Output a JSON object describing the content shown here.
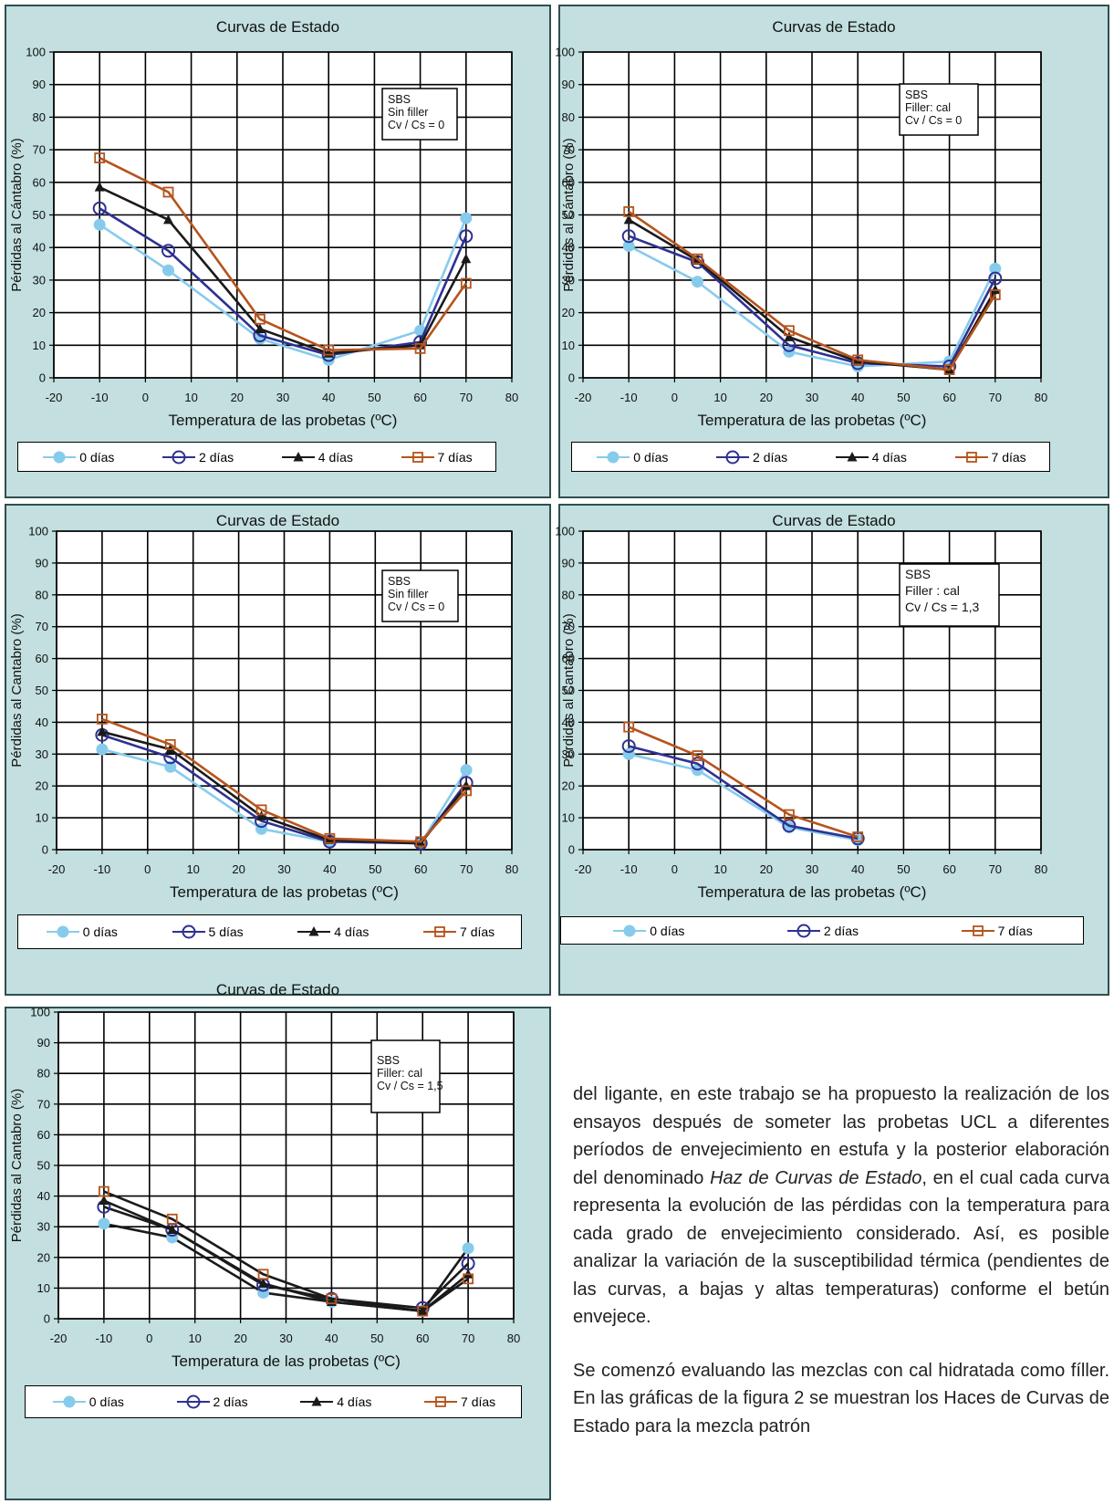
{
  "chart_data": [
    {
      "type": "line",
      "title": "Curvas de Estado",
      "xlabel": "Temperatura de las probetas (ºC)",
      "ylabel": "Pérdidas al Cántabro (%)",
      "xlim": [
        -20,
        80
      ],
      "ylim": [
        0,
        100
      ],
      "xticks": [
        "-20",
        "-10",
        "0",
        "10",
        "20",
        "30",
        "40",
        "50",
        "60",
        "70",
        "80"
      ],
      "yticks": [
        "0",
        "10",
        "20",
        "30",
        "40",
        "50",
        "60",
        "70",
        "80",
        "90",
        "100"
      ],
      "grid": true,
      "annotation": [
        "SBS",
        "Sin filler",
        "Cv / Cs = 0"
      ],
      "legend": "bottom",
      "series": [
        {
          "name": "0 días",
          "marker": "filled-circle",
          "color": "#87cbec",
          "x": [
            -10,
            5,
            25,
            40,
            60,
            70
          ],
          "y": [
            47,
            33,
            12,
            5.5,
            14.5,
            49
          ]
        },
        {
          "name": "2 días",
          "marker": "open-circle",
          "color": "#2e3192",
          "x": [
            -10,
            5,
            25,
            40,
            60,
            70
          ],
          "y": [
            52,
            39,
            13,
            7,
            11,
            43.5
          ]
        },
        {
          "name": "4 días",
          "marker": "filled-triangle",
          "color": "#1a1a1a",
          "x": [
            -10,
            5,
            25,
            40,
            60,
            70
          ],
          "y": [
            58.5,
            48.5,
            15,
            7.5,
            10,
            36.5
          ]
        },
        {
          "name": "7 días",
          "marker": "open-square",
          "color": "#b5541c",
          "x": [
            -10,
            5,
            25,
            40,
            60,
            70
          ],
          "y": [
            67.5,
            57,
            18,
            8.5,
            9,
            29
          ]
        }
      ]
    },
    {
      "type": "line",
      "title": "Curvas de Estado",
      "xlabel": "Temperatura de las probetas (ºC)",
      "ylabel": "Pérdidas al Cántabro (%)",
      "xlim": [
        -20,
        80
      ],
      "ylim": [
        0,
        100
      ],
      "xticks": [
        "-20",
        "-10",
        "0",
        "10",
        "20",
        "30",
        "40",
        "50",
        "60",
        "70",
        "80"
      ],
      "yticks": [
        "0",
        "10",
        "20",
        "30",
        "40",
        "50",
        "60",
        "70",
        "80",
        "90",
        "100"
      ],
      "grid": true,
      "annotation": [
        "SBS",
        "Filler: cal",
        "Cv / Cs = 0"
      ],
      "legend": "bottom",
      "series": [
        {
          "name": "0 días",
          "marker": "filled-circle",
          "color": "#87cbec",
          "x": [
            -10,
            5,
            25,
            40,
            60,
            70
          ],
          "y": [
            40.5,
            29.5,
            8,
            3.5,
            5,
            33.5
          ]
        },
        {
          "name": "2 días",
          "marker": "open-circle",
          "color": "#2e3192",
          "x": [
            -10,
            5,
            25,
            40,
            60,
            70
          ],
          "y": [
            43.5,
            35.5,
            10,
            4.5,
            3.5,
            30.5
          ]
        },
        {
          "name": "4 días",
          "marker": "filled-triangle",
          "color": "#1a1a1a",
          "x": [
            -10,
            5,
            25,
            40,
            60,
            70
          ],
          "y": [
            48.5,
            36,
            12.5,
            5,
            2.5,
            27
          ]
        },
        {
          "name": "7 días",
          "marker": "open-square",
          "color": "#b5541c",
          "x": [
            -10,
            5,
            25,
            40,
            60,
            70
          ],
          "y": [
            51,
            36.5,
            14.5,
            5.5,
            2.5,
            25.5
          ]
        }
      ]
    },
    {
      "type": "line",
      "title": "Curvas de Estado",
      "xlabel": "Temperatura de las probetas (ºC)",
      "ylabel": "Pérdidas al Cantabro (%)",
      "xlim": [
        -20,
        80
      ],
      "ylim": [
        0,
        100
      ],
      "xticks": [
        "-20",
        "-10",
        "0",
        "10",
        "20",
        "30",
        "40",
        "50",
        "60",
        "70",
        "80"
      ],
      "yticks": [
        "0",
        "10",
        "20",
        "30",
        "40",
        "50",
        "60",
        "70",
        "80",
        "90",
        "100"
      ],
      "grid": true,
      "annotation": [
        "SBS",
        "Sin filler",
        "Cv / Cs = 0"
      ],
      "legend": "bottom",
      "series": [
        {
          "name": "0 días",
          "marker": "filled-circle",
          "color": "#87cbec",
          "x": [
            -10,
            5,
            25,
            40,
            60,
            70
          ],
          "y": [
            31.5,
            26,
            6.5,
            2.5,
            2,
            25
          ]
        },
        {
          "name": "5 días",
          "marker": "open-circle",
          "color": "#2e3192",
          "x": [
            -10,
            5,
            25,
            40,
            60,
            70
          ],
          "y": [
            36,
            29,
            9,
            2.5,
            2,
            21
          ]
        },
        {
          "name": "4 días",
          "marker": "filled-triangle",
          "color": "#1a1a1a",
          "x": [
            -10,
            5,
            25,
            40,
            60,
            70
          ],
          "y": [
            37,
            31.5,
            10.5,
            3,
            2,
            20
          ]
        },
        {
          "name": "7 días",
          "marker": "open-square",
          "color": "#b5541c",
          "x": [
            -10,
            5,
            25,
            40,
            60,
            70
          ],
          "y": [
            41,
            33,
            12.5,
            3.5,
            2.5,
            18.5
          ]
        }
      ]
    },
    {
      "type": "line",
      "title": "Curvas de Estado",
      "xlabel": "Temperatura de las probetas (ºC)",
      "ylabel": "Pérdidas al Cantabro (%)",
      "xlim": [
        -20,
        80
      ],
      "ylim": [
        0,
        100
      ],
      "xticks": [
        "-20",
        "-10",
        "0",
        "10",
        "20",
        "30",
        "40",
        "50",
        "60",
        "70",
        "80"
      ],
      "yticks": [
        "0",
        "10",
        "20",
        "30",
        "40",
        "50",
        "60",
        "70",
        "80",
        "90",
        "100"
      ],
      "grid": true,
      "annotation": [
        "SBS",
        "Filler : cal",
        "Cv / Cs = 1,3"
      ],
      "legend": "bottom",
      "series": [
        {
          "name": "0 días",
          "marker": "filled-circle",
          "color": "#87cbec",
          "x": [
            -10,
            5,
            25,
            40
          ],
          "y": [
            30,
            25,
            7,
            3
          ]
        },
        {
          "name": "2 días",
          "marker": "open-circle",
          "color": "#2e3192",
          "x": [
            -10,
            5,
            25,
            40
          ],
          "y": [
            32.5,
            27,
            7.5,
            3.5
          ]
        },
        {
          "name": "7 días",
          "marker": "open-square",
          "color": "#b5541c",
          "x": [
            -10,
            5,
            25,
            40
          ],
          "y": [
            38.5,
            29.5,
            11,
            4
          ]
        }
      ]
    },
    {
      "type": "line",
      "title": "Curvas de Estado",
      "xlabel": "Temperatura de las probetas (ºC)",
      "ylabel": "Pérdidas al Cantabro (%)",
      "xlim": [
        -20,
        80
      ],
      "ylim": [
        0,
        100
      ],
      "xticks": [
        "-20",
        "-10",
        "0",
        "10",
        "20",
        "30",
        "40",
        "50",
        "60",
        "70",
        "80"
      ],
      "yticks": [
        "0",
        "10",
        "20",
        "30",
        "40",
        "50",
        "60",
        "70",
        "80",
        "90",
        "100"
      ],
      "grid": true,
      "annotation": [
        "SBS",
        "Filler: cal",
        "Cv / Cs = 1,5"
      ],
      "legend": "bottom",
      "series": [
        {
          "name": "0 días",
          "marker": "filled-circle",
          "color": "#87cbec",
          "line": "#1a1a1a",
          "x": [
            -10,
            5,
            25,
            40,
            60,
            70
          ],
          "y": [
            31,
            26.5,
            8.5,
            5.5,
            2.5,
            23
          ]
        },
        {
          "name": "2 días",
          "marker": "open-circle",
          "color": "#2e3192",
          "line": "#1a1a1a",
          "x": [
            -10,
            5,
            25,
            40,
            60,
            70
          ],
          "y": [
            36.5,
            29,
            11,
            6.5,
            3.5,
            18
          ]
        },
        {
          "name": "4 días",
          "marker": "filled-triangle",
          "color": "#1a1a1a",
          "line": "#1a1a1a",
          "x": [
            -10,
            5,
            25,
            40,
            60,
            70
          ],
          "y": [
            38.5,
            29,
            11.5,
            5.5,
            2.5,
            14.5
          ]
        },
        {
          "name": "7 días",
          "marker": "open-square",
          "color": "#b5541c",
          "line": "#1a1a1a",
          "x": [
            -10,
            5,
            25,
            40,
            60,
            70
          ],
          "y": [
            41.5,
            32.5,
            14.5,
            6.5,
            2.5,
            13
          ]
        }
      ]
    }
  ],
  "body_text": {
    "p1a": "del ligante, en este trabajo se ha propuesto la realización de los ensayos después de someter las probetas UCL a diferentes períodos de envejecimiento en estufa y la posterior elaboración del denominado ",
    "p1_em1": "Haz de Curvas de Estado",
    "p1b": ", en el cual cada curva representa la evolución de las pérdidas con la temperatura para cada grado de envejecimiento considerado. Así, es posible analizar la variación de la susceptibilidad térmica (pendientes de las curvas, a bajas y altas temperaturas) conforme el betún envejece.",
    "p2": "Se comenzó evaluando las mezclas con cal hidratada como fíller. En las gráficas de la figura 2 se muestran los Haces de Curvas de Estado para la mezcla patrón"
  }
}
